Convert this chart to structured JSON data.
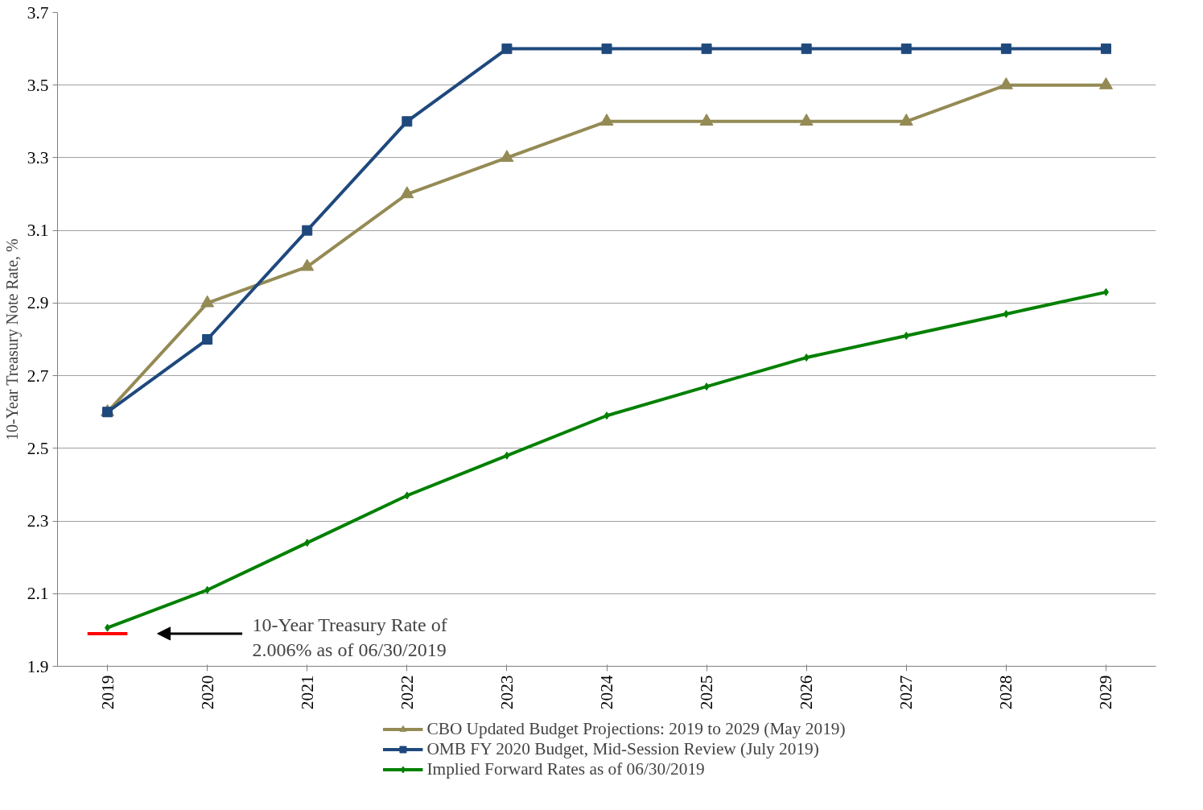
{
  "chart_data": {
    "type": "line",
    "x": [
      2019,
      2020,
      2021,
      2022,
      2023,
      2024,
      2025,
      2026,
      2027,
      2028,
      2029
    ],
    "ylabel": "10-Year Treasury Note Rate, %",
    "series": [
      {
        "name": "CBO Updated Budget Projections: 2019 to 2029 (May 2019)",
        "color": "#948a54",
        "marker": "triangle",
        "values": [
          2.6,
          2.9,
          3.0,
          3.2,
          3.3,
          3.4,
          3.4,
          3.4,
          3.4,
          3.5,
          3.5
        ]
      },
      {
        "name": "OMB FY 2020 Budget, Mid-Session Review (July 2019)",
        "color": "#1f497d",
        "marker": "square",
        "values": [
          2.6,
          2.8,
          3.1,
          3.4,
          3.6,
          3.6,
          3.6,
          3.6,
          3.6,
          3.6,
          3.6
        ]
      },
      {
        "name": "Implied Forward Rates as of 06/30/2019",
        "color": "#008000",
        "marker": "diamond",
        "values": [
          2.006,
          2.11,
          2.24,
          2.37,
          2.48,
          2.59,
          2.67,
          2.75,
          2.81,
          2.87,
          2.93
        ]
      },
      {
        "color": "#ff0000",
        "marker": "none",
        "x": [
          2018.8,
          2019.2
        ],
        "values": [
          1.99,
          1.99
        ]
      }
    ],
    "annotations": [
      "10-Year Treasury Rate of\n2.006% as of  06/30/2019"
    ],
    "xlim": [
      2018.5,
      2029.5
    ],
    "xticks": [
      2019,
      2020,
      2021,
      2022,
      2023,
      2024,
      2025,
      2026,
      2027,
      2028,
      2029
    ],
    "ylim": [
      1.9,
      3.7
    ],
    "yticks": [
      1.9,
      2.1,
      2.3,
      2.5,
      2.7,
      2.9,
      3.1,
      3.3,
      3.5,
      3.7
    ],
    "grid": "y",
    "legend": "bottom",
    "line_style": "solid"
  }
}
